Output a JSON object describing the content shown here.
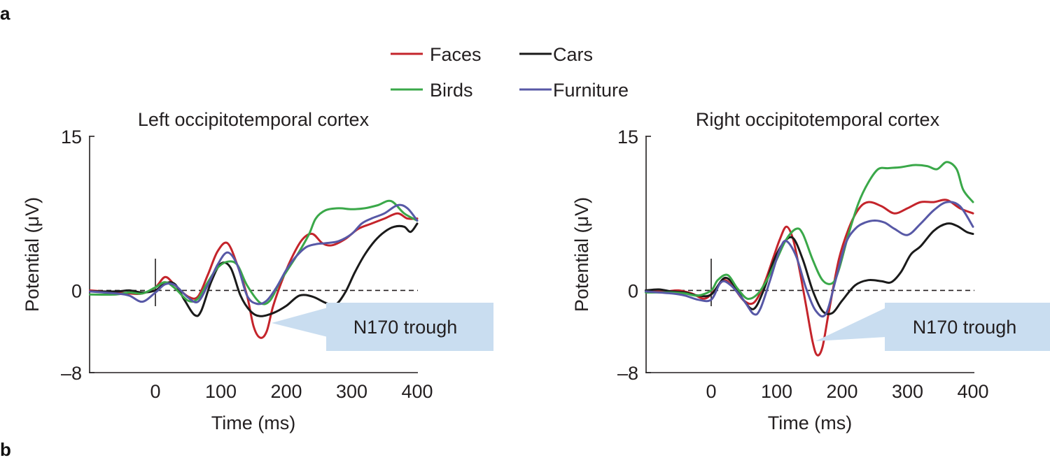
{
  "panel_labels": [
    "a",
    "b"
  ],
  "legend": [
    {
      "label": "Faces",
      "color": "#c4242b"
    },
    {
      "label": "Cars",
      "color": "#1a1a1a"
    },
    {
      "label": "Birds",
      "color": "#3aa849"
    },
    {
      "label": "Furniture",
      "color": "#5758a6"
    }
  ],
  "callout_color": "#c9ddf0",
  "chart_data": [
    {
      "type": "line",
      "title": "Left occipitotemporal cortex",
      "xlabel": "Time (ms)",
      "ylabel": "Potential (μV)",
      "xlim": [
        -100,
        400
      ],
      "ylim": [
        -8,
        15
      ],
      "xticks": [
        0,
        100,
        200,
        300,
        400
      ],
      "xtick_labels": [
        "0",
        "100",
        "200",
        "300",
        "400"
      ],
      "yticks": [
        15,
        0,
        -8
      ],
      "ytick_labels": [
        "15",
        "0",
        "–8"
      ],
      "annotation": {
        "text": "N170 trough",
        "x": 160,
        "y": -4.6
      },
      "series": [
        {
          "name": "Faces",
          "color": "#c4242b",
          "x": [
            -100,
            -60,
            -40,
            -20,
            0,
            15,
            30,
            50,
            65,
            80,
            95,
            110,
            125,
            140,
            150,
            160,
            170,
            180,
            195,
            210,
            225,
            240,
            255,
            270,
            290,
            310,
            330,
            350,
            370,
            385,
            400
          ],
          "y": [
            0,
            -0.2,
            -0.3,
            -0.3,
            0.3,
            1.3,
            0.5,
            -0.6,
            -0.6,
            1.5,
            3.8,
            4.6,
            2.5,
            -0.5,
            -3.5,
            -4.6,
            -4,
            -1.5,
            1.2,
            3.4,
            5,
            5.5,
            4.6,
            4.4,
            5,
            6,
            6.5,
            7,
            7.5,
            7,
            7
          ]
        },
        {
          "name": "Cars",
          "color": "#1a1a1a",
          "x": [
            -100,
            -60,
            -40,
            -20,
            0,
            15,
            30,
            45,
            60,
            70,
            85,
            100,
            115,
            130,
            145,
            160,
            180,
            200,
            220,
            240,
            260,
            275,
            290,
            305,
            320,
            335,
            350,
            365,
            380,
            390,
            400
          ],
          "y": [
            -0.1,
            -0.1,
            0,
            -0.2,
            0,
            0.7,
            0.6,
            -1,
            -2.4,
            -2,
            0.8,
            2.6,
            2.2,
            -0.5,
            -2,
            -2.5,
            -2.2,
            -1.5,
            -0.5,
            -0.6,
            -1.2,
            -1.4,
            -0.2,
            1.8,
            3.5,
            4.8,
            5.7,
            6.2,
            6.2,
            5.7,
            6.5
          ]
        },
        {
          "name": "Birds",
          "color": "#3aa849",
          "x": [
            -100,
            -60,
            -40,
            -20,
            0,
            15,
            30,
            50,
            65,
            80,
            95,
            110,
            125,
            140,
            160,
            175,
            190,
            205,
            220,
            235,
            245,
            260,
            280,
            300,
            320,
            340,
            360,
            380,
            400
          ],
          "y": [
            -0.4,
            -0.4,
            -0.2,
            -0.3,
            0.3,
            0.8,
            0.2,
            -1,
            -0.8,
            0.8,
            2.2,
            2.8,
            2.5,
            0.5,
            -1.2,
            -1,
            0.8,
            2.3,
            3.8,
            5.5,
            7,
            7.8,
            8,
            7.9,
            8,
            8.3,
            8.7,
            7.5,
            6.8
          ]
        },
        {
          "name": "Furniture",
          "color": "#5758a6",
          "x": [
            -100,
            -60,
            -40,
            -20,
            0,
            15,
            30,
            50,
            65,
            80,
            95,
            110,
            125,
            140,
            155,
            170,
            185,
            200,
            215,
            230,
            245,
            260,
            280,
            300,
            315,
            330,
            350,
            370,
            385,
            400
          ],
          "y": [
            -0.1,
            -0.3,
            -0.5,
            -1.1,
            -0.2,
            0.6,
            0.5,
            -0.7,
            -1.1,
            0.5,
            2.5,
            3.7,
            2.5,
            -0.5,
            -1.3,
            -1,
            0.3,
            2,
            3.3,
            4.2,
            4.5,
            4.6,
            4.8,
            5.5,
            6.5,
            7,
            7.5,
            8.3,
            8,
            6.8
          ]
        }
      ]
    },
    {
      "type": "line",
      "title": "Right occipitotemporal cortex",
      "xlabel": "Time (ms)",
      "ylabel": "Potential (μV)",
      "xlim": [
        -100,
        400
      ],
      "ylim": [
        -8,
        15
      ],
      "xticks": [
        0,
        100,
        200,
        300,
        400
      ],
      "xtick_labels": [
        "0",
        "100",
        "200",
        "300",
        "400"
      ],
      "yticks": [
        15,
        0,
        -8
      ],
      "ytick_labels": [
        "15",
        "0",
        "–8"
      ],
      "annotation": {
        "text": "N170 trough",
        "x": 160,
        "y": -6.3
      },
      "series": [
        {
          "name": "Faces",
          "color": "#c4242b",
          "x": [
            -100,
            -70,
            -50,
            -30,
            -10,
            5,
            20,
            35,
            50,
            65,
            80,
            95,
            105,
            115,
            125,
            135,
            145,
            155,
            162,
            170,
            180,
            195,
            210,
            225,
            240,
            260,
            280,
            300,
            320,
            340,
            360,
            380,
            400
          ],
          "y": [
            -0.1,
            -0.1,
            0,
            -0.3,
            -0.8,
            0,
            1,
            0.2,
            -1,
            -1.2,
            0.5,
            3.2,
            5,
            6.2,
            5,
            2,
            -1.5,
            -5,
            -6.3,
            -5.5,
            -2,
            3,
            6,
            7.9,
            8.6,
            8.2,
            7.5,
            8,
            8.6,
            8.6,
            8.8,
            8,
            7.5
          ]
        },
        {
          "name": "Cars",
          "color": "#1a1a1a",
          "x": [
            -100,
            -80,
            -60,
            -40,
            -20,
            0,
            20,
            35,
            50,
            65,
            80,
            95,
            110,
            125,
            140,
            155,
            170,
            185,
            200,
            220,
            240,
            260,
            275,
            290,
            305,
            320,
            340,
            360,
            375,
            390,
            400
          ],
          "y": [
            0,
            0.1,
            -0.1,
            -0.2,
            -0.5,
            -0.4,
            1.2,
            0.5,
            -1,
            -1.8,
            0,
            2.8,
            4.6,
            5.1,
            3,
            0,
            -2,
            -2.2,
            -1,
            0.5,
            1,
            0.9,
            0.8,
            1.8,
            3.5,
            4.3,
            5.8,
            6.5,
            6.3,
            5.7,
            5.5
          ]
        },
        {
          "name": "Birds",
          "color": "#3aa849",
          "x": [
            -100,
            -60,
            -40,
            -20,
            0,
            10,
            25,
            40,
            55,
            70,
            85,
            100,
            115,
            130,
            140,
            155,
            170,
            185,
            195,
            210,
            225,
            240,
            255,
            270,
            290,
            310,
            330,
            345,
            360,
            375,
            385,
            400
          ],
          "y": [
            -0.2,
            -0.2,
            -0.3,
            -0.5,
            0,
            1,
            1.5,
            0.2,
            -0.8,
            -0.4,
            1,
            3,
            5,
            6,
            5.5,
            3,
            1,
            0.7,
            2,
            5.5,
            8.5,
            10.5,
            11.8,
            11.9,
            12,
            12.2,
            12.1,
            11.8,
            12.5,
            11.8,
            9.8,
            8.6
          ]
        },
        {
          "name": "Furniture",
          "color": "#5758a6",
          "x": [
            -100,
            -60,
            -40,
            -20,
            0,
            15,
            30,
            50,
            65,
            75,
            90,
            105,
            115,
            130,
            145,
            160,
            175,
            190,
            205,
            220,
            235,
            250,
            265,
            280,
            300,
            320,
            340,
            360,
            380,
            400
          ],
          "y": [
            -0.1,
            -0.3,
            -0.5,
            -0.9,
            -0.9,
            0.8,
            0.5,
            -1,
            -2.3,
            -1.8,
            1,
            4,
            4.8,
            3.3,
            0.2,
            -2,
            -2.3,
            1,
            4.5,
            6,
            6.6,
            6.8,
            6.6,
            6,
            5.4,
            6.5,
            7.8,
            8.6,
            8.2,
            6.2
          ]
        }
      ]
    }
  ]
}
